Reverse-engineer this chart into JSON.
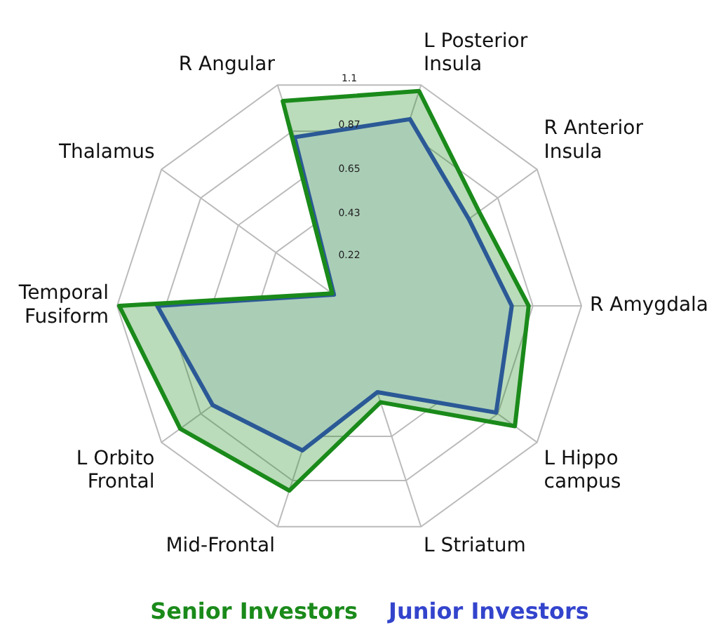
{
  "chart_data": {
    "type": "radar",
    "categories": [
      "L Posterior Insula",
      "R Anterior Insula",
      "R Amygdala",
      "L Hippo campus",
      "L Striatum",
      "Mid-Frontal",
      "L Orbito Frontal",
      "Temporal Fusiform",
      "Thalamus",
      "R Angular"
    ],
    "series": [
      {
        "name": "Senior Investors",
        "color": "#1a8a1a",
        "values": [
          1.07,
          0.76,
          0.85,
          0.97,
          0.48,
          0.92,
          0.99,
          1.09,
          0.1,
          1.02
        ]
      },
      {
        "name": "Junior Investors",
        "color": "#3344cc",
        "values": [
          0.93,
          0.7,
          0.77,
          0.86,
          0.43,
          0.72,
          0.8,
          0.91,
          0.09,
          0.84
        ]
      }
    ],
    "ylim": [
      0,
      1.1
    ],
    "yticks": [
      0.22,
      0.43,
      0.65,
      0.87,
      1.1
    ],
    "grid": true,
    "legend": "bottom"
  }
}
